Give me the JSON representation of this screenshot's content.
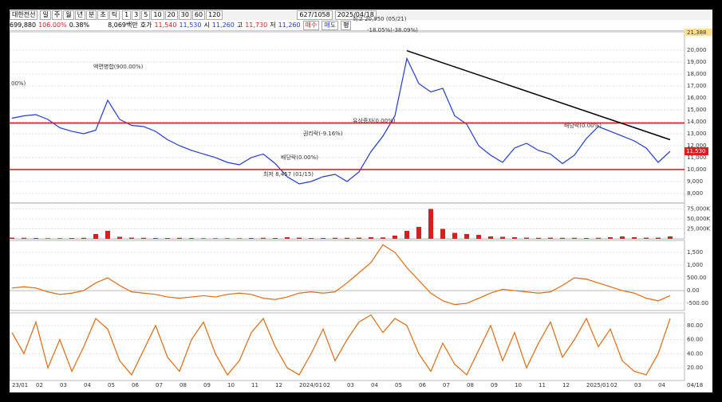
{
  "toolbar": {
    "name": "대한전선",
    "periods": [
      "일",
      "주",
      "월",
      "년",
      "분",
      "초",
      "틱"
    ],
    "intervals": [
      "1",
      "3",
      "5",
      "10",
      "20",
      "30",
      "60",
      "120"
    ],
    "count": "627/1058",
    "date": "2025/04/18"
  },
  "quote": {
    "volume": "699,880",
    "volume_ratio": "106.00%",
    "change": "0.38%",
    "amount": "8,069백만",
    "ask_label": "호가",
    "ask": "11,540",
    "bid": "11,530",
    "open_label": "시",
    "open": "11,260",
    "high_label": "고",
    "high": "11,730",
    "low_label": "저",
    "low": "11,260",
    "buy": "매수",
    "sell": "매도",
    "avg": "평"
  },
  "x_labels": [
    "23/01",
    "02",
    "03",
    "04",
    "05",
    "06",
    "07",
    "08",
    "09",
    "10",
    "11",
    "12",
    "2024/01",
    "02",
    "03",
    "04",
    "05",
    "06",
    "07",
    "08",
    "09",
    "10",
    "11",
    "12",
    "2025/01",
    "02",
    "03",
    "04"
  ],
  "x_end_label": "04/18",
  "chart_data": [
    {
      "type": "line",
      "name": "price",
      "color": "#1f3bd6",
      "ylim": [
        7200,
        21530
      ],
      "yticks": [
        {
          "value": 20000,
          "label": "20,000"
        },
        {
          "value": 19000,
          "label": "19,000"
        },
        {
          "value": 18000,
          "label": "18,000"
        },
        {
          "value": 17000,
          "label": "17,000"
        },
        {
          "value": 16000,
          "label": "16,000"
        },
        {
          "value": 15000,
          "label": "15,000"
        },
        {
          "value": 14000,
          "label": "14,000"
        },
        {
          "value": 13000,
          "label": "13,000"
        },
        {
          "value": 12000,
          "label": "12,000"
        },
        {
          "value": 11000,
          "label": "11,000"
        },
        {
          "value": 10000,
          "label": "10,000"
        },
        {
          "value": 9000,
          "label": "9,000"
        },
        {
          "value": 8000,
          "label": "8,000"
        }
      ],
      "values": [
        14300,
        14500,
        14600,
        14200,
        13500,
        13200,
        13000,
        13300,
        15800,
        14200,
        13700,
        13600,
        13200,
        12500,
        12000,
        11600,
        11300,
        11000,
        10600,
        10400,
        11000,
        11300,
        10500,
        9400,
        8800,
        9000,
        9400,
        9600,
        9000,
        9800,
        11500,
        12800,
        14500,
        19300,
        17200,
        16500,
        16800,
        14500,
        13800,
        12000,
        11200,
        10600,
        11800,
        12200,
        11600,
        11300,
        10500,
        11200,
        12600,
        13600,
        13200,
        12800,
        12400,
        11800,
        10600,
        11530
      ],
      "hlines": [
        13900,
        10000
      ],
      "trendline": [
        19950,
        12500
      ],
      "annotations": [
        "최고 20,950 (05/21)",
        "-18.05%(-38.09%)",
        "액면병합(900.00%)",
        "권리락(-9.16%)",
        "유상증자(0.00%)",
        "배당락(0.00%)",
        "최저 8,457 (01/15)",
        "배당락(0.00%)",
        "00%)"
      ],
      "top_label": "21,388",
      "last_label": "11,530"
    },
    {
      "type": "bar",
      "name": "volume",
      "color": "#d62020",
      "ylim": [
        0,
        90000
      ],
      "yticks": [
        {
          "value": 75000,
          "label": "75,000K"
        },
        {
          "value": 50000,
          "label": "50,000K"
        },
        {
          "value": 25000,
          "label": "25,000K"
        }
      ],
      "values": [
        3000,
        2500,
        2000,
        1500,
        1500,
        2000,
        2500,
        12000,
        20000,
        5000,
        3000,
        2500,
        2000,
        2000,
        2500,
        2000,
        1500,
        1500,
        1500,
        1500,
        2000,
        2500,
        2000,
        4000,
        3000,
        2000,
        2000,
        2500,
        2500,
        3000,
        4000,
        3500,
        8000,
        20000,
        30000,
        75000,
        25000,
        15000,
        12000,
        10000,
        6000,
        5000,
        4000,
        3000,
        2500,
        3000,
        2500,
        2500,
        2000,
        2500,
        4000,
        6000,
        4000,
        3000,
        3000,
        6000
      ]
    },
    {
      "type": "line",
      "name": "macd",
      "color": "#e06a10",
      "ylim": [
        -780,
        1970
      ],
      "yticks": [
        {
          "value": 1500,
          "label": "1,500"
        },
        {
          "value": 1000,
          "label": "1,000"
        },
        {
          "value": 500,
          "label": "500.00"
        },
        {
          "value": 0,
          "label": "0.00"
        },
        {
          "value": -500,
          "label": "-500.00"
        }
      ],
      "values": [
        100,
        150,
        100,
        -50,
        -150,
        -100,
        0,
        300,
        500,
        200,
        -50,
        -100,
        -150,
        -250,
        -300,
        -250,
        -200,
        -250,
        -150,
        -100,
        -150,
        -300,
        -350,
        -250,
        -100,
        -50,
        -100,
        -50,
        300,
        700,
        1100,
        1800,
        1500,
        900,
        400,
        -100,
        -400,
        -550,
        -500,
        -300,
        -100,
        50,
        0,
        -50,
        -100,
        -50,
        200,
        500,
        450,
        300,
        150,
        0,
        -100,
        -300,
        -400,
        -200
      ]
    },
    {
      "type": "line",
      "name": "stochastic",
      "color": "#e06a10",
      "ylim": [
        2,
        98
      ],
      "yticks": [
        {
          "value": 80,
          "label": "80.00"
        },
        {
          "value": 60,
          "label": "60.00"
        },
        {
          "value": 40,
          "label": "40.00"
        },
        {
          "value": 20,
          "label": "20.00"
        }
      ],
      "values": [
        70,
        40,
        85,
        20,
        60,
        15,
        50,
        90,
        75,
        30,
        10,
        45,
        80,
        35,
        15,
        60,
        85,
        40,
        10,
        30,
        70,
        90,
        50,
        20,
        10,
        40,
        75,
        30,
        60,
        85,
        95,
        70,
        90,
        80,
        40,
        15,
        55,
        25,
        10,
        45,
        80,
        30,
        70,
        20,
        55,
        85,
        35,
        60,
        90,
        50,
        75,
        30,
        15,
        10,
        40,
        90
      ]
    }
  ]
}
